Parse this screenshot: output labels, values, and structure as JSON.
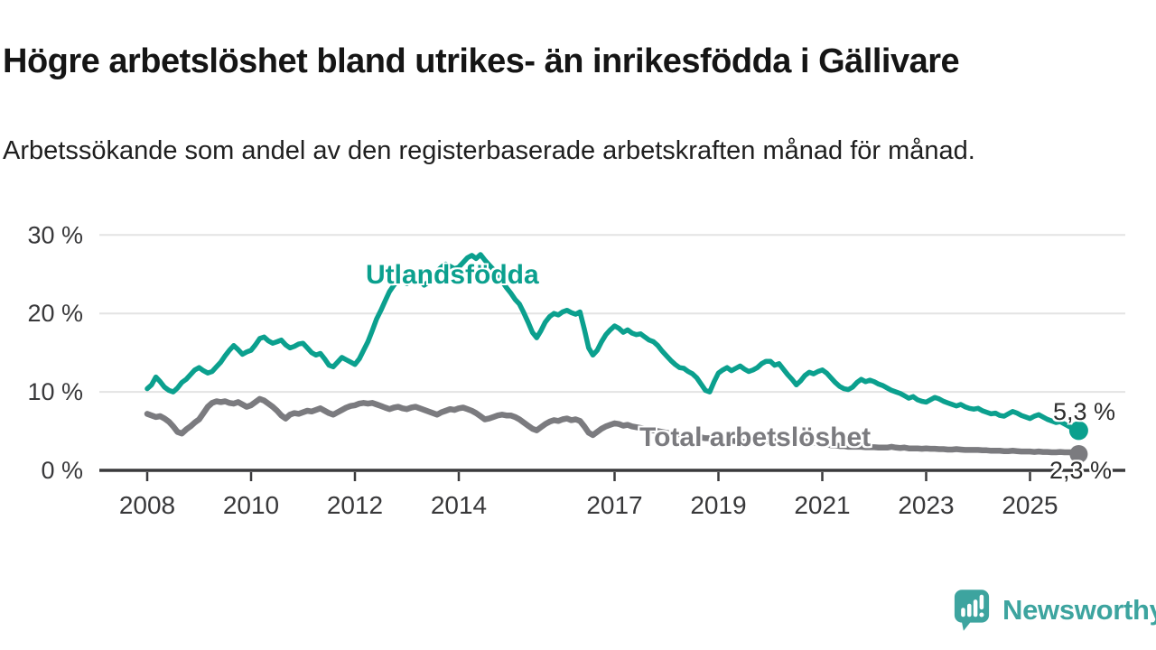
{
  "title": "Högre arbetslöshet bland utrikes- än inrikesfödda i Gällivare",
  "subtitle": "Arbetssökande som andel av den registerbaserade arbetskraften månad för månad.",
  "branding": {
    "logo_text": "Newsworthy",
    "logo_color": "#3da49f"
  },
  "colors": {
    "utlandsfodda": "#0ba08e",
    "total": "#7b7b7f",
    "axis": "#3a3a3c",
    "gridline": "#e3e3e3"
  },
  "chart_data": {
    "type": "line",
    "title": "Högre arbetslöshet bland utrikes- än inrikesfödda i Gällivare",
    "xlabel": "",
    "ylabel": "%",
    "ylim": [
      0,
      30
    ],
    "grid": "horizontal",
    "x_unit": "month",
    "x_start": "2008-01",
    "x_end": "2025-11",
    "x_tick_years": [
      2008,
      2010,
      2012,
      2014,
      2017,
      2019,
      2021,
      2023,
      2025
    ],
    "y_gridlines": [
      10,
      20,
      30
    ],
    "y_tick_labels": [
      {
        "value": 0,
        "label": "0 %"
      },
      {
        "value": 10,
        "label": "10 %"
      },
      {
        "value": 20,
        "label": "20 %"
      },
      {
        "value": 30,
        "label": "30 %"
      }
    ],
    "series": [
      {
        "id": "utlandsfodda",
        "name": "Utlandsfödda",
        "color": "#0ba08e",
        "end_label": "5,3 %",
        "end_value": 5.3,
        "values": [
          10.4,
          10.9,
          11.9,
          11.3,
          10.6,
          10.2,
          10.0,
          10.5,
          11.2,
          11.6,
          12.2,
          12.8,
          13.1,
          12.7,
          12.4,
          12.6,
          13.2,
          13.8,
          14.6,
          15.3,
          15.9,
          15.4,
          14.8,
          15.1,
          15.3,
          16.0,
          16.8,
          17.0,
          16.5,
          16.2,
          16.4,
          16.6,
          16.0,
          15.6,
          15.8,
          16.1,
          16.2,
          15.6,
          15.0,
          14.7,
          14.9,
          14.2,
          13.4,
          13.2,
          13.8,
          14.4,
          14.1,
          13.8,
          13.5,
          14.2,
          15.3,
          16.4,
          17.8,
          19.3,
          20.4,
          21.6,
          22.8,
          23.6,
          24.3,
          24.1,
          23.8,
          24.3,
          24.8,
          24.4,
          23.6,
          24.0,
          24.8,
          25.4,
          25.9,
          26.3,
          26.0,
          25.7,
          25.9,
          26.5,
          27.1,
          27.4,
          27.0,
          27.5,
          26.8,
          26.2,
          25.6,
          24.8,
          24.1,
          23.3,
          22.6,
          21.8,
          21.2,
          20.1,
          18.9,
          17.6,
          16.9,
          17.8,
          18.9,
          19.6,
          20.0,
          19.8,
          20.2,
          20.4,
          20.1,
          19.9,
          20.2,
          18.0,
          15.6,
          14.7,
          15.3,
          16.4,
          17.3,
          17.9,
          18.4,
          18.1,
          17.6,
          17.9,
          17.5,
          17.3,
          17.4,
          17.0,
          16.6,
          16.4,
          15.9,
          15.2,
          14.6,
          14.0,
          13.5,
          13.1,
          13.0,
          12.6,
          12.3,
          11.8,
          11.0,
          10.2,
          10.0,
          11.3,
          12.4,
          12.8,
          13.1,
          12.7,
          13.0,
          13.3,
          12.9,
          12.6,
          12.8,
          13.1,
          13.6,
          13.9,
          13.9,
          13.4,
          13.6,
          12.9,
          12.2,
          11.6,
          10.9,
          11.4,
          12.1,
          12.5,
          12.3,
          12.6,
          12.8,
          12.4,
          11.8,
          11.2,
          10.7,
          10.4,
          10.3,
          10.6,
          11.2,
          11.6,
          11.3,
          11.5,
          11.3,
          11.0,
          10.8,
          10.5,
          10.2,
          10.0,
          9.8,
          9.5,
          9.2,
          9.4,
          9.0,
          8.8,
          8.7,
          9.0,
          9.3,
          9.1,
          8.8,
          8.6,
          8.4,
          8.2,
          8.4,
          8.1,
          7.9,
          7.8,
          7.9,
          7.6,
          7.4,
          7.2,
          7.3,
          7.0,
          6.9,
          7.2,
          7.5,
          7.3,
          7.0,
          6.8,
          6.6,
          6.9,
          7.1,
          6.8,
          6.5,
          6.3,
          6.1,
          6.2,
          5.9,
          5.6,
          5.3
        ]
      },
      {
        "id": "total",
        "name": "Total arbetslöshet",
        "color": "#7b7b7f",
        "end_label": "2,3 %",
        "end_value": 2.3,
        "values": [
          7.2,
          7.0,
          6.8,
          6.9,
          6.6,
          6.2,
          5.6,
          4.9,
          4.7,
          5.2,
          5.6,
          6.1,
          6.5,
          7.3,
          8.1,
          8.6,
          8.8,
          8.7,
          8.8,
          8.6,
          8.5,
          8.7,
          8.4,
          8.1,
          8.3,
          8.7,
          9.1,
          8.9,
          8.5,
          8.1,
          7.6,
          7.0,
          6.6,
          7.1,
          7.3,
          7.2,
          7.4,
          7.6,
          7.5,
          7.7,
          7.9,
          7.6,
          7.3,
          7.1,
          7.4,
          7.7,
          8.0,
          8.2,
          8.3,
          8.5,
          8.6,
          8.5,
          8.6,
          8.4,
          8.2,
          8.0,
          7.8,
          8.0,
          8.1,
          7.9,
          7.8,
          8.0,
          8.1,
          7.9,
          7.7,
          7.5,
          7.3,
          7.1,
          7.4,
          7.6,
          7.8,
          7.7,
          7.9,
          8.0,
          7.8,
          7.6,
          7.3,
          6.9,
          6.5,
          6.6,
          6.8,
          7.0,
          7.1,
          7.0,
          7.0,
          6.8,
          6.5,
          6.1,
          5.7,
          5.3,
          5.1,
          5.5,
          5.9,
          6.2,
          6.4,
          6.3,
          6.5,
          6.6,
          6.4,
          6.5,
          6.3,
          5.6,
          4.8,
          4.5,
          4.9,
          5.3,
          5.6,
          5.8,
          6.0,
          5.9,
          5.7,
          5.8,
          5.6,
          5.5,
          5.4,
          5.3,
          5.2,
          5.1,
          5.0,
          4.9,
          4.8,
          4.7,
          4.6,
          4.6,
          4.5,
          4.4,
          4.4,
          4.3,
          4.2,
          4.1,
          4.1,
          4.0,
          4.0,
          3.9,
          3.8,
          3.8,
          3.7,
          3.7,
          3.6,
          3.6,
          3.6,
          3.6,
          3.6,
          3.6,
          3.6,
          3.7,
          3.9,
          4.0,
          4.0,
          3.9,
          3.8,
          3.7,
          3.7,
          3.6,
          3.5,
          3.5,
          3.4,
          3.3,
          3.2,
          3.2,
          3.1,
          3.1,
          3.0,
          3.0,
          3.0,
          3.0,
          2.95,
          2.95,
          2.95,
          2.9,
          2.9,
          2.9,
          3.0,
          2.9,
          2.85,
          2.9,
          2.8,
          2.8,
          2.8,
          2.75,
          2.8,
          2.75,
          2.75,
          2.7,
          2.7,
          2.65,
          2.65,
          2.7,
          2.65,
          2.6,
          2.6,
          2.6,
          2.6,
          2.55,
          2.55,
          2.5,
          2.5,
          2.5,
          2.45,
          2.45,
          2.5,
          2.45,
          2.4,
          2.4,
          2.4,
          2.35,
          2.4,
          2.35,
          2.35,
          2.3,
          2.3,
          2.35,
          2.3,
          2.3,
          2.3
        ]
      }
    ]
  }
}
